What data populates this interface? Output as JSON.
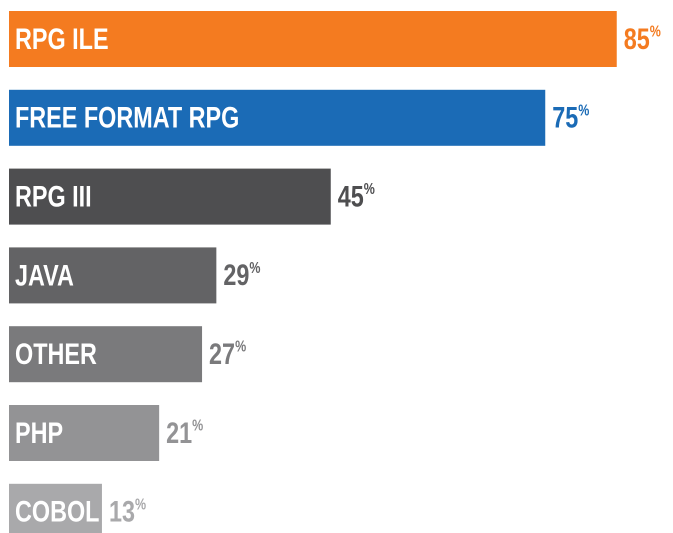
{
  "chart_data": {
    "type": "bar",
    "orientation": "horizontal",
    "categories": [
      "RPG ILE",
      "FREE FORMAT RPG",
      "RPG III",
      "JAVA",
      "OTHER",
      "PHP",
      "COBOL"
    ],
    "values": [
      85,
      75,
      45,
      29,
      27,
      21,
      13
    ],
    "value_labels": [
      "85%",
      "75%",
      "45%",
      "29%",
      "27%",
      "21%",
      "13%"
    ],
    "colors": [
      "#f47b20",
      "#1b6bb6",
      "#4e4e50",
      "#636365",
      "#7a7a7c",
      "#939395",
      "#a9a9ab"
    ]
  }
}
